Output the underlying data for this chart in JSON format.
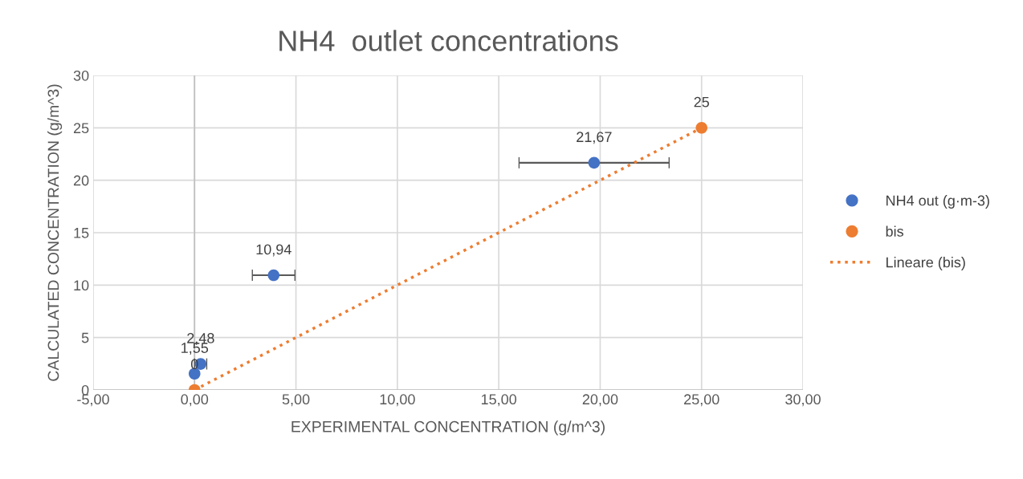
{
  "chart_data": {
    "type": "scatter",
    "title": "NH4  outlet concentrations",
    "xlabel": "EXPERIMENTAL CONCENTRATION (g/m^3)",
    "ylabel": "CALCULATED CONCENTRATION (g/m^3)",
    "series": [
      {
        "name": "NH4 out (g·m-3)",
        "marker": "circle",
        "color": "#4472c4",
        "x": [
          0,
          0.3,
          3.9,
          19.7
        ],
        "values": [
          1.55,
          2.48,
          10.94,
          21.67
        ],
        "xerrors": [
          null,
          0.3,
          1.05,
          3.7
        ],
        "value_labels": [
          "1,55",
          "2,48",
          "10,94",
          "21,67"
        ]
      },
      {
        "name": "bis",
        "marker": "circle",
        "color": "#ed7d31",
        "x": [
          0,
          25
        ],
        "values": [
          0,
          25
        ],
        "value_labels": [
          "0",
          "25"
        ]
      },
      {
        "name": "Lineare (bis)",
        "type": "line",
        "color": "#ed7d31",
        "line_style": "dotted",
        "x": [
          0,
          25
        ],
        "values": [
          0,
          25
        ]
      }
    ],
    "xlim": [
      -5,
      30
    ],
    "xticks": [
      {
        "value": -5,
        "label": "-5,00"
      },
      {
        "value": 0,
        "label": "0,00"
      },
      {
        "value": 5,
        "label": "5,00"
      },
      {
        "value": 10,
        "label": "10,00"
      },
      {
        "value": 15,
        "label": "15,00"
      },
      {
        "value": 20,
        "label": "20,00"
      },
      {
        "value": 25,
        "label": "25,00"
      },
      {
        "value": 30,
        "label": "30,00"
      }
    ],
    "ylim": [
      0,
      30
    ],
    "yticks": [
      0,
      5,
      10,
      15,
      20,
      25,
      30
    ],
    "grid": true,
    "legend": "right"
  }
}
